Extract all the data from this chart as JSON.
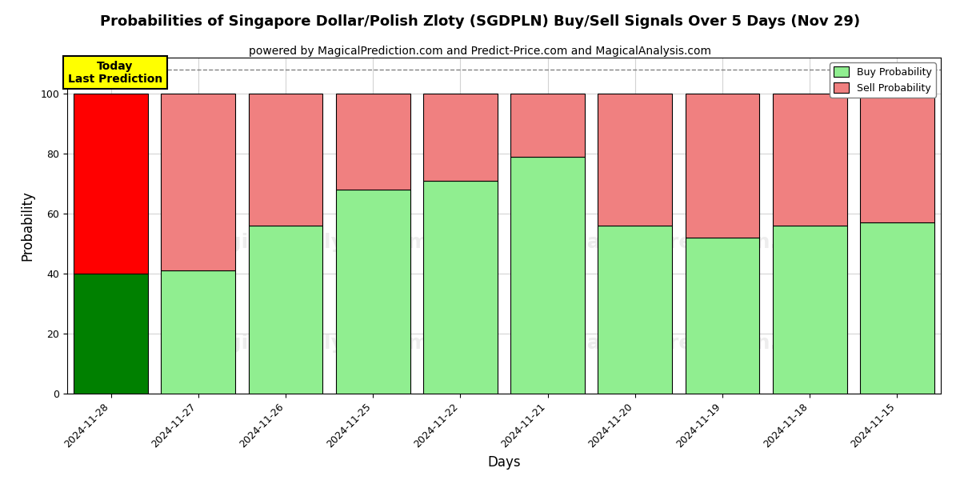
{
  "title": "Probabilities of Singapore Dollar/Polish Zloty (SGDPLN) Buy/Sell Signals Over 5 Days (Nov 29)",
  "subtitle": "powered by MagicalPrediction.com and Predict-Price.com and MagicalAnalysis.com",
  "xlabel": "Days",
  "ylabel": "Probability",
  "categories": [
    "2024-11-28",
    "2024-11-27",
    "2024-11-26",
    "2024-11-25",
    "2024-11-22",
    "2024-11-21",
    "2024-11-20",
    "2024-11-19",
    "2024-11-18",
    "2024-11-15"
  ],
  "buy_values": [
    40,
    41,
    56,
    68,
    71,
    79,
    56,
    52,
    56,
    57
  ],
  "sell_values": [
    60,
    59,
    44,
    32,
    29,
    21,
    44,
    48,
    44,
    43
  ],
  "today_bar_buy_color": "#008000",
  "today_bar_sell_color": "#FF0000",
  "other_bar_buy_color": "#90EE90",
  "other_bar_sell_color": "#F08080",
  "bar_edge_color": "#000000",
  "ylim": [
    0,
    112
  ],
  "yticks": [
    0,
    20,
    40,
    60,
    80,
    100
  ],
  "dashed_line_y": 108,
  "legend_buy_color": "#90EE90",
  "legend_sell_color": "#F08080",
  "today_label": "Today\nLast Prediction",
  "today_label_bg": "#FFFF00",
  "watermark_color_1": "#DCDCDC",
  "watermark_color_2": "#DCDCDC",
  "title_fontsize": 13,
  "subtitle_fontsize": 10,
  "axis_label_fontsize": 12,
  "tick_fontsize": 9
}
